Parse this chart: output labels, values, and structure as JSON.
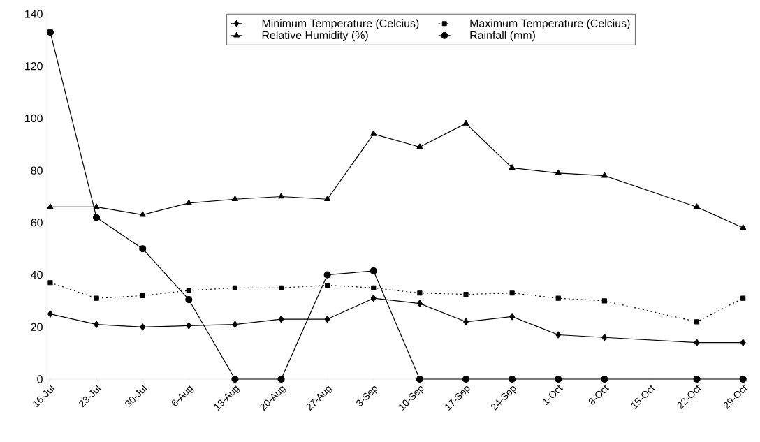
{
  "chart_data": {
    "type": "line",
    "categories": [
      "16-Jul",
      "23-Jul",
      "30-Jul",
      "6-Aug",
      "13-Aug",
      "20-Aug",
      "27-Aug",
      "3-Sep",
      "10-Sep",
      "17-Sep",
      "24-Sep",
      "1-Oct",
      "8-Oct",
      "15-Oct",
      "22-Oct",
      "29-Oct"
    ],
    "series": [
      {
        "name": "Minimum Temperature (Celcius)",
        "color": "#000000",
        "marker": "diamond",
        "line_style": "solid",
        "values": [
          25,
          21,
          20,
          20.5,
          21,
          23,
          23,
          31,
          29,
          22,
          24,
          17,
          16,
          null,
          14,
          14
        ]
      },
      {
        "name": "Maximum Temperature (Celcius)",
        "color": "#000000",
        "marker": "square",
        "line_style": "dotted",
        "values": [
          37,
          31,
          32,
          34,
          35,
          35,
          36,
          35,
          33,
          32.5,
          33,
          31,
          30,
          null,
          22,
          31
        ]
      },
      {
        "name": "Relative Humidity (%)",
        "color": "#000000",
        "marker": "triangle",
        "line_style": "solid",
        "values": [
          66,
          66,
          63,
          67.5,
          69,
          70,
          69,
          94,
          89,
          98,
          81,
          79,
          78,
          null,
          66,
          58
        ]
      },
      {
        "name": "Rainfall (mm)",
        "color": "#000000",
        "marker": "circle",
        "line_style": "solid",
        "values": [
          133,
          62,
          50,
          30.5,
          0,
          0,
          40,
          41.5,
          0,
          0,
          0,
          0,
          0,
          null,
          0,
          0
        ]
      }
    ],
    "ylim": [
      0,
      140
    ],
    "yticks": [
      0,
      20,
      40,
      60,
      80,
      100,
      120,
      140
    ],
    "grid": false,
    "legend": "top"
  }
}
